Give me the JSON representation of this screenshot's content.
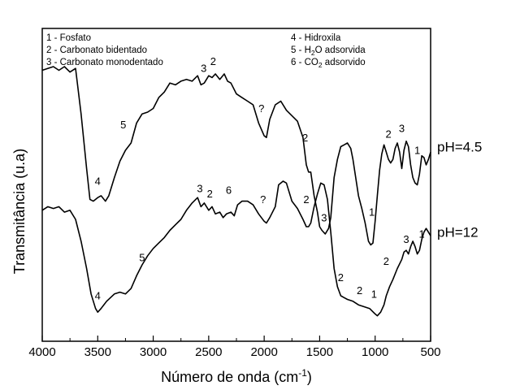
{
  "chart_data": {
    "type": "line",
    "xlabel": "Número de onda (cm",
    "xlabel_sup": "-1",
    "xlabel_end": ")",
    "ylabel": "Transmitância (u.a)",
    "xlim": [
      4000,
      500
    ],
    "x_reversed": true,
    "x_ticks": [
      "4000",
      "3500",
      "3000",
      "2500",
      "2000",
      "1500",
      "1000",
      "500"
    ],
    "x_tick_values": [
      4000,
      3500,
      3000,
      2500,
      2000,
      1500,
      1000,
      500
    ],
    "y_ticks_shown": false,
    "grid": false,
    "legend": {
      "placement": "top",
      "left": [
        "1 - Fosfato",
        "2 - Carbonato bidentado",
        "3 - Carbonato monodentado"
      ],
      "right": [
        "4 - Hidroxila",
        {
          "pre": "5 - H",
          "sub": "2",
          "post": "O adsorvida"
        },
        {
          "pre": "6 - CO",
          "sub": "2",
          "post": " adsorvido"
        }
      ]
    },
    "series": [
      {
        "name": "pH=4.5",
        "offset": 1.0,
        "points": [
          [
            4000,
            1.79
          ],
          [
            3950,
            1.8
          ],
          [
            3900,
            1.81
          ],
          [
            3850,
            1.79
          ],
          [
            3800,
            1.81
          ],
          [
            3750,
            1.78
          ],
          [
            3700,
            1.8
          ],
          [
            3650,
            1.55
          ],
          [
            3600,
            1.25
          ],
          [
            3570,
            1.08
          ],
          [
            3540,
            1.07
          ],
          [
            3500,
            1.09
          ],
          [
            3470,
            1.1
          ],
          [
            3430,
            1.07
          ],
          [
            3400,
            1.1
          ],
          [
            3350,
            1.2
          ],
          [
            3300,
            1.29
          ],
          [
            3250,
            1.35
          ],
          [
            3200,
            1.39
          ],
          [
            3150,
            1.5
          ],
          [
            3100,
            1.55
          ],
          [
            3050,
            1.56
          ],
          [
            3000,
            1.58
          ],
          [
            2950,
            1.64
          ],
          [
            2900,
            1.67
          ],
          [
            2850,
            1.72
          ],
          [
            2800,
            1.71
          ],
          [
            2750,
            1.73
          ],
          [
            2700,
            1.74
          ],
          [
            2650,
            1.73
          ],
          [
            2600,
            1.76
          ],
          [
            2570,
            1.71
          ],
          [
            2540,
            1.72
          ],
          [
            2500,
            1.76
          ],
          [
            2470,
            1.75
          ],
          [
            2440,
            1.77
          ],
          [
            2400,
            1.74
          ],
          [
            2360,
            1.77
          ],
          [
            2330,
            1.73
          ],
          [
            2300,
            1.72
          ],
          [
            2250,
            1.66
          ],
          [
            2200,
            1.64
          ],
          [
            2150,
            1.62
          ],
          [
            2100,
            1.6
          ],
          [
            2050,
            1.5
          ],
          [
            2000,
            1.43
          ],
          [
            1980,
            1.42
          ],
          [
            1950,
            1.52
          ],
          [
            1900,
            1.6
          ],
          [
            1850,
            1.62
          ],
          [
            1800,
            1.57
          ],
          [
            1750,
            1.54
          ],
          [
            1700,
            1.51
          ],
          [
            1650,
            1.42
          ],
          [
            1620,
            1.27
          ],
          [
            1600,
            1.23
          ],
          [
            1580,
            1.23
          ],
          [
            1550,
            1.1
          ],
          [
            1520,
            1.01
          ],
          [
            1500,
            0.93
          ],
          [
            1480,
            0.91
          ],
          [
            1450,
            0.89
          ],
          [
            1420,
            0.92
          ],
          [
            1400,
            0.98
          ],
          [
            1370,
            1.2
          ],
          [
            1340,
            1.3
          ],
          [
            1310,
            1.37
          ],
          [
            1280,
            1.38
          ],
          [
            1250,
            1.39
          ],
          [
            1220,
            1.36
          ],
          [
            1200,
            1.3
          ],
          [
            1150,
            1.1
          ],
          [
            1120,
            1.03
          ],
          [
            1090,
            0.95
          ],
          [
            1060,
            0.85
          ],
          [
            1040,
            0.83
          ],
          [
            1020,
            0.84
          ],
          [
            1000,
            0.96
          ],
          [
            980,
            1.1
          ],
          [
            960,
            1.24
          ],
          [
            940,
            1.33
          ],
          [
            920,
            1.38
          ],
          [
            900,
            1.34
          ],
          [
            880,
            1.3
          ],
          [
            860,
            1.28
          ],
          [
            840,
            1.3
          ],
          [
            820,
            1.36
          ],
          [
            800,
            1.39
          ],
          [
            780,
            1.34
          ],
          [
            760,
            1.25
          ],
          [
            740,
            1.35
          ],
          [
            720,
            1.4
          ],
          [
            700,
            1.37
          ],
          [
            680,
            1.27
          ],
          [
            660,
            1.2
          ],
          [
            640,
            1.17
          ],
          [
            620,
            1.16
          ],
          [
            600,
            1.22
          ],
          [
            580,
            1.32
          ],
          [
            560,
            1.31
          ],
          [
            540,
            1.27
          ],
          [
            520,
            1.3
          ],
          [
            500,
            1.34
          ]
        ]
      },
      {
        "name": "pH=12",
        "offset": 0.0,
        "points": [
          [
            4000,
            1.02
          ],
          [
            3950,
            1.04
          ],
          [
            3900,
            1.03
          ],
          [
            3850,
            1.04
          ],
          [
            3800,
            1.01
          ],
          [
            3750,
            1.02
          ],
          [
            3700,
            0.97
          ],
          [
            3650,
            0.85
          ],
          [
            3600,
            0.7
          ],
          [
            3560,
            0.56
          ],
          [
            3520,
            0.48
          ],
          [
            3500,
            0.46
          ],
          [
            3470,
            0.48
          ],
          [
            3420,
            0.52
          ],
          [
            3350,
            0.56
          ],
          [
            3300,
            0.57
          ],
          [
            3250,
            0.56
          ],
          [
            3200,
            0.59
          ],
          [
            3150,
            0.66
          ],
          [
            3100,
            0.72
          ],
          [
            3050,
            0.77
          ],
          [
            3000,
            0.81
          ],
          [
            2950,
            0.84
          ],
          [
            2900,
            0.87
          ],
          [
            2850,
            0.91
          ],
          [
            2800,
            0.94
          ],
          [
            2750,
            0.97
          ],
          [
            2700,
            1.02
          ],
          [
            2650,
            1.06
          ],
          [
            2600,
            1.09
          ],
          [
            2570,
            1.04
          ],
          [
            2540,
            1.06
          ],
          [
            2500,
            1.02
          ],
          [
            2470,
            1.04
          ],
          [
            2440,
            1.0
          ],
          [
            2400,
            1.01
          ],
          [
            2370,
            0.98
          ],
          [
            2340,
            1.0
          ],
          [
            2300,
            1.01
          ],
          [
            2270,
            0.99
          ],
          [
            2240,
            1.05
          ],
          [
            2200,
            1.07
          ],
          [
            2150,
            1.07
          ],
          [
            2100,
            1.05
          ],
          [
            2050,
            1.0
          ],
          [
            2000,
            0.96
          ],
          [
            1980,
            0.95
          ],
          [
            1950,
            0.98
          ],
          [
            1900,
            1.04
          ],
          [
            1870,
            1.16
          ],
          [
            1830,
            1.18
          ],
          [
            1800,
            1.17
          ],
          [
            1780,
            1.13
          ],
          [
            1750,
            1.07
          ],
          [
            1700,
            1.03
          ],
          [
            1650,
            0.97
          ],
          [
            1620,
            0.93
          ],
          [
            1600,
            0.93
          ],
          [
            1580,
            0.95
          ],
          [
            1550,
            1.04
          ],
          [
            1520,
            1.11
          ],
          [
            1490,
            1.17
          ],
          [
            1460,
            1.16
          ],
          [
            1430,
            1.08
          ],
          [
            1400,
            0.9
          ],
          [
            1370,
            0.7
          ],
          [
            1340,
            0.6
          ],
          [
            1310,
            0.55
          ],
          [
            1280,
            0.54
          ],
          [
            1250,
            0.53
          ],
          [
            1200,
            0.52
          ],
          [
            1150,
            0.5
          ],
          [
            1100,
            0.49
          ],
          [
            1050,
            0.48
          ],
          [
            1000,
            0.45
          ],
          [
            980,
            0.44
          ],
          [
            950,
            0.46
          ],
          [
            920,
            0.5
          ],
          [
            900,
            0.55
          ],
          [
            870,
            0.6
          ],
          [
            840,
            0.64
          ],
          [
            800,
            0.7
          ],
          [
            760,
            0.75
          ],
          [
            740,
            0.79
          ],
          [
            720,
            0.8
          ],
          [
            700,
            0.78
          ],
          [
            680,
            0.82
          ],
          [
            660,
            0.85
          ],
          [
            640,
            0.82
          ],
          [
            620,
            0.78
          ],
          [
            600,
            0.8
          ],
          [
            580,
            0.86
          ],
          [
            560,
            0.9
          ],
          [
            540,
            0.92
          ],
          [
            520,
            0.9
          ],
          [
            500,
            0.88
          ]
        ]
      }
    ],
    "annotations": [
      {
        "text": "4",
        "x": 3500,
        "y": 1.16
      },
      {
        "text": "5",
        "x": 3270,
        "y": 1.47
      },
      {
        "text": "3",
        "x": 2545,
        "y": 1.78
      },
      {
        "text": "2",
        "x": 2460,
        "y": 1.82
      },
      {
        "text": "?",
        "x": 2025,
        "y": 1.56
      },
      {
        "text": "2",
        "x": 1630,
        "y": 1.4
      },
      {
        "text": "3",
        "x": 1460,
        "y": 0.96
      },
      {
        "text": "1",
        "x": 1030,
        "y": 0.99
      },
      {
        "text": "2",
        "x": 880,
        "y": 1.42
      },
      {
        "text": "3",
        "x": 760,
        "y": 1.45
      },
      {
        "text": "1",
        "x": 620,
        "y": 1.33
      },
      {
        "text": "4",
        "x": 3500,
        "y": 0.53
      },
      {
        "text": "5",
        "x": 3100,
        "y": 0.74
      },
      {
        "text": "3",
        "x": 2580,
        "y": 1.12
      },
      {
        "text": "2",
        "x": 2490,
        "y": 1.09
      },
      {
        "text": "6",
        "x": 2320,
        "y": 1.11
      },
      {
        "text": "?",
        "x": 2010,
        "y": 1.06
      },
      {
        "text": "2",
        "x": 1620,
        "y": 1.06
      },
      {
        "text": "2",
        "x": 1310,
        "y": 0.63
      },
      {
        "text": "2",
        "x": 1140,
        "y": 0.56
      },
      {
        "text": "1",
        "x": 1010,
        "y": 0.54
      },
      {
        "text": "2",
        "x": 900,
        "y": 0.72
      },
      {
        "text": "3",
        "x": 720,
        "y": 0.84
      },
      {
        "text": "1",
        "x": 580,
        "y": 0.87
      }
    ],
    "series_labels": [
      {
        "text": "pH=4.5",
        "y": 1.37
      },
      {
        "text": "pH=12",
        "y": 0.9
      }
    ]
  }
}
